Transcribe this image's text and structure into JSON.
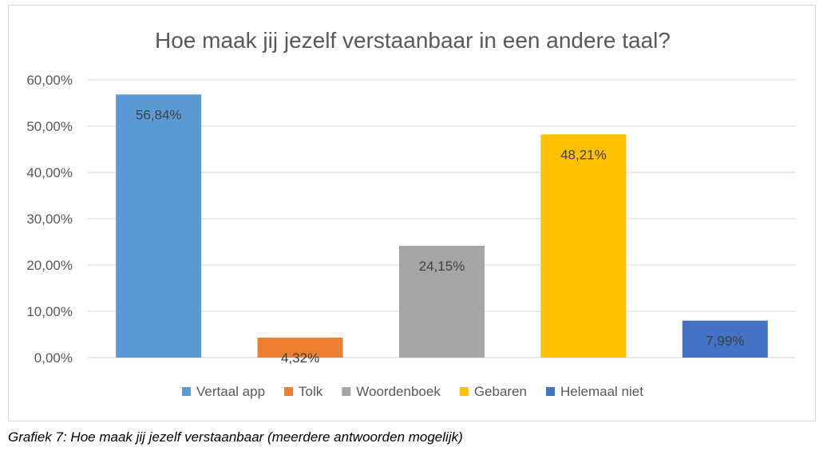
{
  "chart_data": {
    "type": "bar",
    "title": "Hoe maak jij jezelf verstaanbaar in een andere taal?",
    "categories": [
      "Vertaal app",
      "Tolk",
      "Woordenboek",
      "Gebaren",
      "Helemaal niet"
    ],
    "values": [
      56.84,
      4.32,
      24.15,
      48.21,
      7.99
    ],
    "data_labels": [
      "56,84%",
      "4,32%",
      "24,15%",
      "48,21%",
      "7,99%"
    ],
    "colors": [
      "#5b9bd5",
      "#ed7d31",
      "#a5a5a5",
      "#ffc000",
      "#4472c4"
    ],
    "ylim": [
      0,
      60
    ],
    "yticks": [
      0,
      10,
      20,
      30,
      40,
      50,
      60
    ],
    "ytick_labels": [
      "0,00%",
      "10,00%",
      "20,00%",
      "30,00%",
      "40,00%",
      "50,00%",
      "60,00%"
    ],
    "xlabel": "",
    "ylabel": "",
    "grid": true,
    "legend_position": "bottom"
  },
  "caption": "Grafiek 7: Hoe maak jij jezelf verstaanbaar (meerdere antwoorden mogelijk)"
}
